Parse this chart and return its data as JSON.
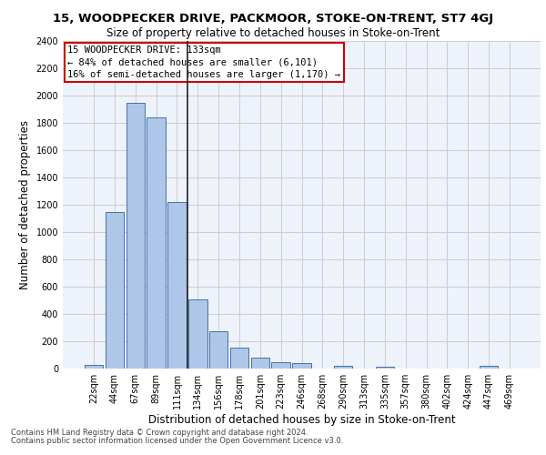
{
  "title_line1": "15, WOODPECKER DRIVE, PACKMOOR, STOKE-ON-TRENT, ST7 4GJ",
  "title_line2": "Size of property relative to detached houses in Stoke-on-Trent",
  "xlabel": "Distribution of detached houses by size in Stoke-on-Trent",
  "ylabel": "Number of detached properties",
  "categories": [
    "22sqm",
    "44sqm",
    "67sqm",
    "89sqm",
    "111sqm",
    "134sqm",
    "156sqm",
    "178sqm",
    "201sqm",
    "223sqm",
    "246sqm",
    "268sqm",
    "290sqm",
    "313sqm",
    "335sqm",
    "357sqm",
    "380sqm",
    "402sqm",
    "424sqm",
    "447sqm",
    "469sqm"
  ],
  "values": [
    25,
    1150,
    1950,
    1840,
    1220,
    510,
    275,
    155,
    80,
    50,
    40,
    0,
    20,
    0,
    15,
    0,
    0,
    0,
    0,
    20,
    0
  ],
  "bar_color": "#aec6e8",
  "bar_edge_color": "#4472a8",
  "highlight_bar_index": 5,
  "highlight_line_color": "#222222",
  "annotation_text_line1": "15 WOODPECKER DRIVE: 133sqm",
  "annotation_text_line2": "← 84% of detached houses are smaller (6,101)",
  "annotation_text_line3": "16% of semi-detached houses are larger (1,170) →",
  "annotation_box_color": "#ffffff",
  "annotation_box_edge_color": "#cc0000",
  "ylim": [
    0,
    2400
  ],
  "yticks": [
    0,
    200,
    400,
    600,
    800,
    1000,
    1200,
    1400,
    1600,
    1800,
    2000,
    2200,
    2400
  ],
  "grid_color": "#cccccc",
  "bg_color": "#eef2fa",
  "footer_line1": "Contains HM Land Registry data © Crown copyright and database right 2024.",
  "footer_line2": "Contains public sector information licensed under the Open Government Licence v3.0.",
  "title_fontsize": 9.5,
  "subtitle_fontsize": 8.5,
  "axis_label_fontsize": 8.5,
  "tick_fontsize": 7.0,
  "footer_fontsize": 6.0,
  "annotation_fontsize": 7.5
}
